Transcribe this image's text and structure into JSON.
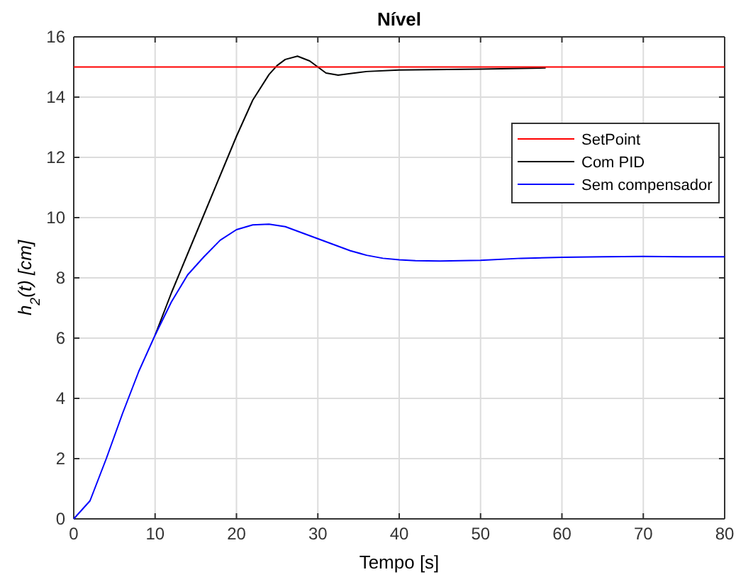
{
  "chart_data": {
    "type": "line",
    "title": "Nível",
    "xlabel": "Tempo [s]",
    "ylabel": "h$_{2}$(t) [cm]",
    "xlim": [
      0,
      80
    ],
    "ylim": [
      0,
      16
    ],
    "xticks": [
      0,
      10,
      20,
      30,
      40,
      50,
      60,
      70,
      80
    ],
    "yticks": [
      0,
      2,
      4,
      6,
      8,
      10,
      12,
      14,
      16
    ],
    "grid": true,
    "legend": "top right",
    "series": [
      {
        "name": "SetPoint",
        "color": "#ff0000",
        "x": [
          0,
          80
        ],
        "values": [
          15,
          15
        ]
      },
      {
        "name": "Com PID",
        "color": "#000000",
        "x": [
          10,
          12,
          14,
          16,
          18,
          20,
          22,
          24,
          25,
          26,
          27.5,
          29,
          30,
          31,
          32.5,
          34,
          36,
          40,
          50,
          58
        ],
        "values": [
          6.1,
          7.5,
          8.8,
          10.1,
          11.4,
          12.7,
          13.9,
          14.75,
          15.05,
          15.25,
          15.36,
          15.2,
          15.0,
          14.8,
          14.73,
          14.78,
          14.85,
          14.9,
          14.93,
          14.97
        ]
      },
      {
        "name": "Sem compensador",
        "color": "#0000ff",
        "x": [
          0,
          2,
          4,
          6,
          8,
          10,
          12,
          14,
          16,
          18,
          20,
          22,
          24,
          26,
          28,
          30,
          32,
          34,
          36,
          38,
          40,
          42,
          45,
          50,
          55,
          60,
          65,
          70,
          75,
          80
        ],
        "values": [
          0,
          0.6,
          2.0,
          3.5,
          4.9,
          6.1,
          7.2,
          8.1,
          8.7,
          9.25,
          9.6,
          9.76,
          9.78,
          9.7,
          9.5,
          9.3,
          9.1,
          8.9,
          8.75,
          8.65,
          8.6,
          8.57,
          8.56,
          8.58,
          8.65,
          8.68,
          8.7,
          8.71,
          8.7,
          8.7
        ]
      }
    ]
  }
}
